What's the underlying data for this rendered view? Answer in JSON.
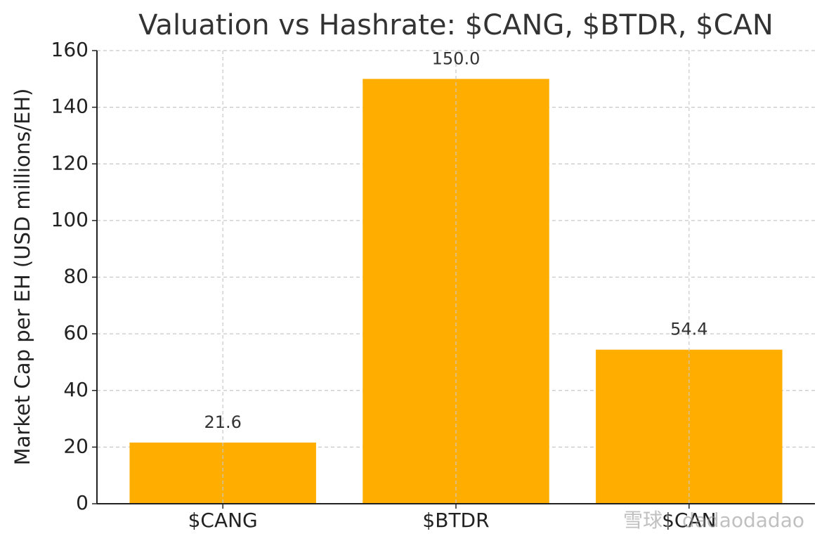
{
  "chart_data": {
    "type": "bar",
    "title": "Valuation vs Hashrate: $CANG, $BTDR, $CAN",
    "y_label": "Market Cap per EH (USD millions/EH)",
    "categories": [
      "$CANG",
      "$BTDR",
      "$CAN"
    ],
    "values": [
      21.6,
      150.0,
      54.4
    ],
    "value_labels": [
      "21.6",
      "150.0",
      "54.4"
    ],
    "color": "#ffae00",
    "ylim": [
      0,
      160
    ],
    "yticks": [
      0,
      20,
      40,
      60,
      80,
      100,
      120,
      140,
      160
    ],
    "grid": true,
    "watermark": "雪球：dadaodadao"
  }
}
